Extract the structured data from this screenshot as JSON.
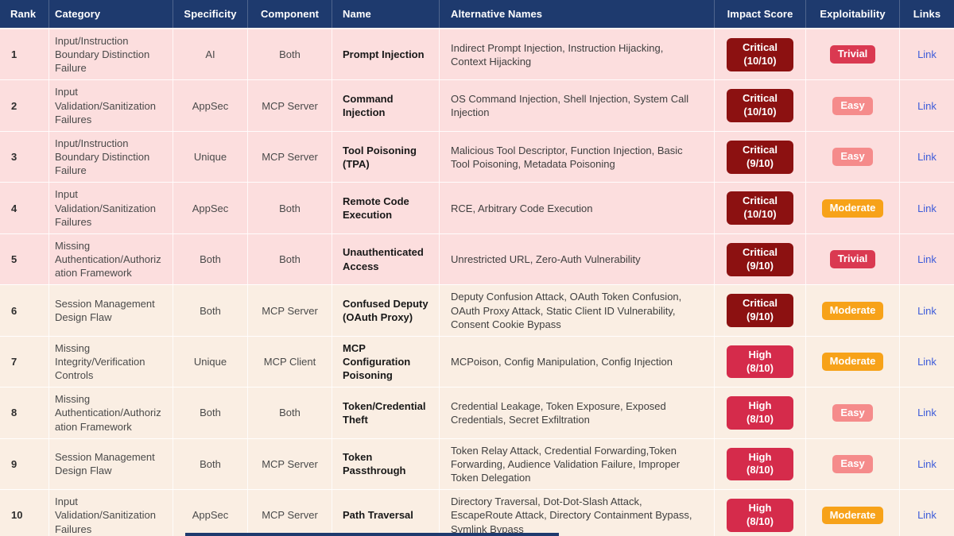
{
  "colors": {
    "header_bg": "#1e3a6e",
    "row_pink": "#fcdede",
    "row_cream": "#faeee3",
    "impact_critical_badge": "#8c1111",
    "impact_high_badge": "#d52b4b",
    "exploitability_trivial_badge": "#da3951",
    "exploitability_easy_badge": "#f58b8b",
    "exploitability_moderate_badge": "#f7a219",
    "link": "#3c5bd9"
  },
  "table": {
    "headers": [
      "Rank",
      "Category",
      "Specificity",
      "Component",
      "Name",
      "Alternative Names",
      "Impact Score",
      "Exploitability",
      "Links"
    ],
    "rows": [
      {
        "rank": "1",
        "theme": "pink",
        "category": "Input/Instruction Boundary Distinction Failure",
        "specificity": "AI",
        "component": "Both",
        "name": "Prompt Injection",
        "alternative_names": "Indirect Prompt Injection, Instruction Hijacking, Context Hijacking",
        "impact": "Critical (10/10)",
        "impact_level": "critical",
        "exploitability": "Trivial",
        "exploitability_level": "trivial",
        "link": "Link"
      },
      {
        "rank": "2",
        "theme": "pink",
        "category": "Input Validation/Sanitization Failures",
        "specificity": "AppSec",
        "component": "MCP Server",
        "name": "Command Injection",
        "alternative_names": "OS Command Injection, Shell Injection, System Call Injection",
        "impact": "Critical (10/10)",
        "impact_level": "critical",
        "exploitability": "Easy",
        "exploitability_level": "easy",
        "link": "Link"
      },
      {
        "rank": "3",
        "theme": "pink",
        "category": "Input/Instruction Boundary Distinction Failure",
        "specificity": "Unique",
        "component": "MCP Server",
        "name": "Tool Poisoning (TPA)",
        "alternative_names": "Malicious Tool Descriptor, Function Injection, Basic Tool Poisoning, Metadata Poisoning",
        "impact": "Critical (9/10)",
        "impact_level": "critical",
        "exploitability": "Easy",
        "exploitability_level": "easy",
        "link": "Link"
      },
      {
        "rank": "4",
        "theme": "pink",
        "category": "Input Validation/Sanitization Failures",
        "specificity": "AppSec",
        "component": "Both",
        "name": "Remote Code Execution",
        "alternative_names": "RCE, Arbitrary Code Execution",
        "impact": "Critical (10/10)",
        "impact_level": "critical",
        "exploitability": "Moderate",
        "exploitability_level": "moderate",
        "link": "Link"
      },
      {
        "rank": "5",
        "theme": "pink",
        "category": "Missing Authentication/Authorization Framework",
        "specificity": "Both",
        "component": "Both",
        "name": "Unauthenticated Access",
        "alternative_names": "Unrestricted URL, Zero-Auth Vulnerability",
        "impact": "Critical (9/10)",
        "impact_level": "critical",
        "exploitability": "Trivial",
        "exploitability_level": "trivial",
        "link": "Link"
      },
      {
        "rank": "6",
        "theme": "cream",
        "category": "Session Management Design Flaw",
        "specificity": "Both",
        "component": "MCP Server",
        "name": "Confused Deputy (OAuth Proxy)",
        "alternative_names": "Deputy Confusion Attack, OAuth Token Confusion, OAuth Proxy Attack, Static Client ID Vulnerability, Consent Cookie Bypass",
        "impact": "Critical (9/10)",
        "impact_level": "critical",
        "exploitability": "Moderate",
        "exploitability_level": "moderate",
        "link": "Link"
      },
      {
        "rank": "7",
        "theme": "cream",
        "category": "Missing Integrity/Verification Controls",
        "specificity": "Unique",
        "component": "MCP Client",
        "name": "MCP Configuration Poisoning",
        "alternative_names": "MCPoison, Config Manipulation, Config Injection",
        "impact": "High (8/10)",
        "impact_level": "high",
        "exploitability": "Moderate",
        "exploitability_level": "moderate",
        "link": "Link"
      },
      {
        "rank": "8",
        "theme": "cream",
        "category": "Missing Authentication/Authorization Framework",
        "specificity": "Both",
        "component": "Both",
        "name": "Token/Credential Theft",
        "alternative_names": "Credential Leakage, Token Exposure, Exposed Credentials, Secret Exfiltration",
        "impact": "High (8/10)",
        "impact_level": "high",
        "exploitability": "Easy",
        "exploitability_level": "easy",
        "link": "Link"
      },
      {
        "rank": "9",
        "theme": "cream",
        "category": "Session Management Design Flaw",
        "specificity": "Both",
        "component": "MCP Server",
        "name": "Token Passthrough",
        "alternative_names": "Token Relay Attack, Credential Forwarding,Token Forwarding, Audience Validation Failure, Improper Token Delegation",
        "impact": "High (8/10)",
        "impact_level": "high",
        "exploitability": "Easy",
        "exploitability_level": "easy",
        "link": "Link"
      },
      {
        "rank": "10",
        "theme": "cream",
        "category": "Input Validation/Sanitization Failures",
        "specificity": "AppSec",
        "component": "MCP Server",
        "name": "Path Traversal",
        "alternative_names": "Directory Traversal, Dot-Dot-Slash Attack, EscapeRoute Attack, Directory Containment Bypass, Symlink Bypass",
        "impact": "High (8/10)",
        "impact_level": "high",
        "exploitability": "Moderate",
        "exploitability_level": "moderate",
        "link": "Link"
      }
    ]
  }
}
